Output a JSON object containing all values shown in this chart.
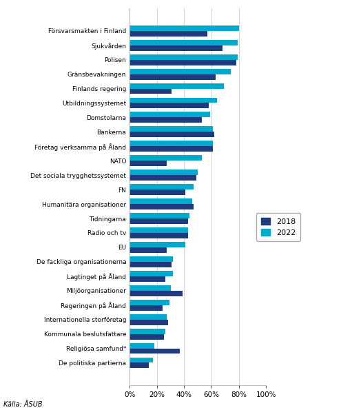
{
  "categories": [
    "Försvarsmakten i Finland",
    "Sjukvården",
    "Polisen",
    "Gränsbevakningen",
    "Finlands regering",
    "Utbildningssystemet",
    "Domstolarna",
    "Bankerna",
    "Företag verksamma på Åland",
    "NATO",
    "Det sociala trygghetssystemet",
    "FN",
    "Humanitära organisationer",
    "Tidningarna",
    "Radio och tv",
    "EU",
    "De fackliga organisationerna",
    "Lagtinget på Åland",
    "Miljöorganisationer",
    "Regeringen på Åland",
    "Internationella storföretag",
    "Kommunala beslutsfattare",
    "Religiösa samfund*",
    "De politiska partierna"
  ],
  "values_2018": [
    57,
    68,
    78,
    63,
    31,
    58,
    53,
    62,
    61,
    27,
    49,
    41,
    47,
    43,
    43,
    27,
    31,
    26,
    39,
    24,
    28,
    25,
    37,
    14
  ],
  "values_2022": [
    80,
    79,
    79,
    74,
    69,
    64,
    59,
    61,
    61,
    53,
    50,
    47,
    46,
    44,
    43,
    41,
    32,
    32,
    30,
    29,
    27,
    26,
    18,
    17
  ],
  "color_2018": "#1F3A7D",
  "color_2022": "#00AACC",
  "footnote": "Källa: ÅSUB",
  "legend_2018": "2018",
  "legend_2022": "2022",
  "xlim": [
    0,
    100
  ],
  "xticks": [
    0,
    20,
    40,
    60,
    80,
    100
  ],
  "xticklabels": [
    "0%",
    "20%",
    "40%",
    "60%",
    "80%",
    "100%"
  ]
}
